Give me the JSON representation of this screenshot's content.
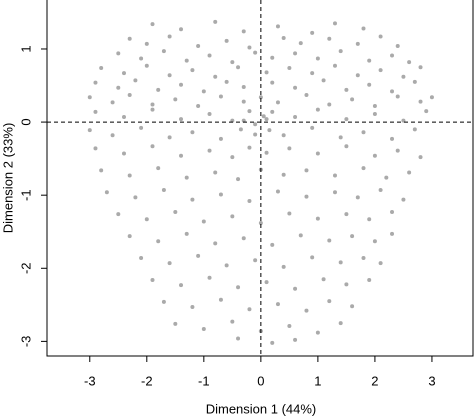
{
  "chart_data": {
    "type": "scatter",
    "x_label": "Dimension 1 (44%)",
    "y_label": "Dimension 2 (33%)",
    "xlim": [
      -3.75,
      3.72
    ],
    "ylim": [
      -3.2,
      1.67
    ],
    "xticks": [
      -3,
      -2,
      -1,
      0,
      1,
      2,
      3
    ],
    "yticks": [
      -3,
      -2,
      -1,
      0,
      1
    ],
    "hline": 0,
    "vline": 0,
    "color": "#aaaaaa",
    "x": [
      -1.9,
      -1.4,
      -0.8,
      -0.3,
      0.3,
      0.9,
      1.3,
      1.8,
      -2.3,
      -2.0,
      -1.6,
      -1.1,
      -0.6,
      -0.2,
      0.4,
      0.7,
      1.2,
      1.7,
      2.1,
      2.4,
      -2.5,
      -2.1,
      -1.7,
      -1.3,
      -0.9,
      -0.5,
      -0.1,
      0.2,
      0.6,
      1.0,
      1.4,
      1.9,
      2.3,
      2.6,
      -2.8,
      -2.4,
      -2.0,
      -1.6,
      -1.2,
      -0.8,
      -0.4,
      0.1,
      0.5,
      0.9,
      1.3,
      1.7,
      2.1,
      2.5,
      2.8,
      -2.9,
      -2.5,
      -2.2,
      -1.8,
      -1.4,
      -1.0,
      -0.6,
      -0.3,
      0.2,
      0.6,
      1.1,
      1.5,
      1.9,
      2.3,
      2.7,
      -3.0,
      -2.6,
      -2.3,
      -1.9,
      -1.5,
      -1.1,
      -0.7,
      -0.3,
      0.0,
      0.3,
      0.8,
      1.2,
      1.6,
      2.0,
      2.4,
      2.8,
      3.0,
      -2.9,
      -2.4,
      -1.9,
      -1.4,
      -0.9,
      -0.5,
      -0.2,
      0.05,
      0.2,
      0.6,
      1.0,
      1.5,
      2.0,
      2.5,
      2.9,
      -0.3,
      -0.1,
      0.1,
      -3.0,
      -2.6,
      -2.1,
      -1.6,
      -1.2,
      -0.7,
      -0.35,
      -0.1,
      0.15,
      0.4,
      0.9,
      1.4,
      1.8,
      2.3,
      2.7,
      -2.9,
      -2.4,
      -1.9,
      -1.4,
      -0.9,
      -0.5,
      -0.2,
      0.1,
      0.5,
      1.0,
      1.5,
      2.0,
      2.4,
      2.8,
      -2.8,
      -2.3,
      -1.8,
      -1.3,
      -0.8,
      -0.4,
      0.0,
      0.4,
      0.8,
      1.3,
      1.8,
      2.2,
      2.6,
      -2.7,
      -2.2,
      -1.7,
      -1.2,
      -0.7,
      -0.2,
      0.3,
      0.8,
      1.3,
      1.7,
      2.1,
      2.5,
      -2.5,
      -2.0,
      -1.5,
      -1.0,
      -0.5,
      0.0,
      0.5,
      1.0,
      1.5,
      1.9,
      2.3,
      -2.3,
      -1.8,
      -1.3,
      -0.8,
      -0.3,
      0.2,
      0.7,
      1.2,
      1.6,
      2.0,
      2.3,
      -2.1,
      -1.6,
      -1.1,
      -0.6,
      -0.1,
      0.4,
      0.9,
      1.4,
      1.8,
      2.1,
      -1.9,
      -1.4,
      -0.9,
      -0.4,
      0.1,
      0.6,
      1.1,
      1.5,
      1.9,
      -1.7,
      -1.2,
      -0.7,
      -0.2,
      0.3,
      0.8,
      1.2,
      1.6,
      -1.5,
      -1.0,
      -0.5,
      0.0,
      0.5,
      1.0,
      1.4,
      -0.4,
      0.2,
      0.6
    ],
    "y": [
      1.34,
      1.27,
      1.37,
      1.24,
      1.31,
      1.22,
      1.35,
      1.28,
      1.14,
      1.07,
      1.17,
      1.04,
      1.11,
      1.02,
      1.15,
      1.08,
      1.14,
      1.07,
      1.17,
      1.04,
      0.94,
      0.87,
      0.97,
      0.84,
      0.91,
      0.82,
      0.95,
      0.88,
      0.94,
      0.87,
      0.97,
      0.84,
      0.91,
      0.82,
      0.74,
      0.67,
      0.77,
      0.64,
      0.71,
      0.62,
      0.75,
      0.68,
      0.74,
      0.67,
      0.77,
      0.64,
      0.71,
      0.62,
      0.75,
      0.54,
      0.47,
      0.57,
      0.44,
      0.51,
      0.42,
      0.55,
      0.48,
      0.54,
      0.47,
      0.57,
      0.44,
      0.51,
      0.42,
      0.55,
      0.34,
      0.27,
      0.37,
      0.24,
      0.31,
      0.22,
      0.35,
      0.28,
      0.34,
      0.27,
      0.37,
      0.24,
      0.31,
      0.22,
      0.35,
      0.28,
      0.34,
      0.14,
      0.07,
      0.17,
      0.04,
      0.11,
      0.02,
      0.15,
      0.08,
      0.14,
      0.07,
      0.17,
      0.04,
      0.11,
      0.02,
      0.15,
      0.02,
      -0.03,
      0.04,
      -0.11,
      -0.18,
      -0.08,
      -0.21,
      -0.14,
      -0.23,
      -0.1,
      -0.17,
      -0.11,
      -0.18,
      -0.08,
      -0.21,
      -0.14,
      -0.23,
      -0.1,
      -0.36,
      -0.43,
      -0.33,
      -0.46,
      -0.39,
      -0.48,
      -0.35,
      -0.42,
      -0.36,
      -0.43,
      -0.33,
      -0.46,
      -0.39,
      -0.48,
      -0.66,
      -0.73,
      -0.63,
      -0.76,
      -0.69,
      -0.78,
      -0.65,
      -0.72,
      -0.66,
      -0.73,
      -0.63,
      -0.76,
      -0.69,
      -0.96,
      -1.03,
      -0.93,
      -1.06,
      -0.99,
      -1.08,
      -0.95,
      -1.02,
      -0.96,
      -1.03,
      -0.93,
      -1.06,
      -1.26,
      -1.33,
      -1.23,
      -1.36,
      -1.29,
      -1.38,
      -1.25,
      -1.32,
      -1.26,
      -1.33,
      -1.23,
      -1.56,
      -1.63,
      -1.53,
      -1.66,
      -1.59,
      -1.68,
      -1.55,
      -1.62,
      -1.56,
      -1.63,
      -1.53,
      -1.86,
      -1.93,
      -1.83,
      -1.96,
      -1.89,
      -1.98,
      -1.85,
      -1.92,
      -1.86,
      -1.93,
      -2.16,
      -2.23,
      -2.13,
      -2.26,
      -2.19,
      -2.28,
      -2.15,
      -2.22,
      -2.16,
      -2.46,
      -2.53,
      -2.43,
      -2.56,
      -2.49,
      -2.58,
      -2.45,
      -2.52,
      -2.76,
      -2.83,
      -2.73,
      -2.86,
      -2.79,
      -2.88,
      -2.75,
      -2.96,
      -3.02,
      -2.98
    ]
  }
}
